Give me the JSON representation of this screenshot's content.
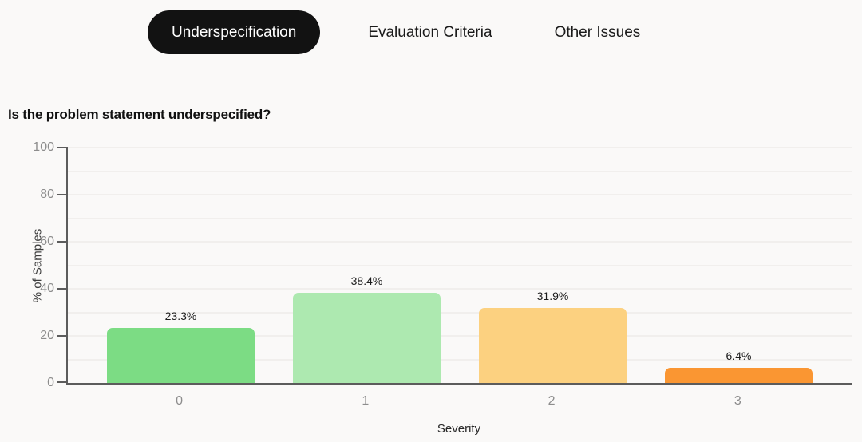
{
  "tabs": [
    {
      "label": "Underspecification",
      "active": true
    },
    {
      "label": "Evaluation Criteria",
      "active": false
    },
    {
      "label": "Other Issues",
      "active": false
    }
  ],
  "chart_title": "Is the problem statement underspecified?",
  "chart_data": {
    "type": "bar",
    "categories": [
      "0",
      "1",
      "2",
      "3"
    ],
    "values": [
      23.3,
      38.4,
      31.9,
      6.4
    ],
    "value_labels": [
      "23.3%",
      "38.4%",
      "31.9%",
      "6.4%"
    ],
    "bar_colors": [
      "#7cdc84",
      "#ade9b0",
      "#fcd180",
      "#fa9632"
    ],
    "title": "Is the problem statement underspecified?",
    "xlabel": "Severity",
    "ylabel": "% of Samples",
    "ylim": [
      0,
      100
    ],
    "yticks": [
      0,
      20,
      40,
      60,
      80,
      100
    ],
    "grid_step": 10,
    "grid": true,
    "legend": false
  },
  "colors": {
    "background": "#faf9f8",
    "active_tab_bg": "#121212",
    "active_tab_text": "#ffffff",
    "inactive_tab_text": "#1a1a1a",
    "axis_line": "#5c5c5c",
    "gridline": "#f1efed",
    "tick_label": "#8d8d8d",
    "value_label": "#1c1c1c",
    "title_text": "#111111"
  }
}
